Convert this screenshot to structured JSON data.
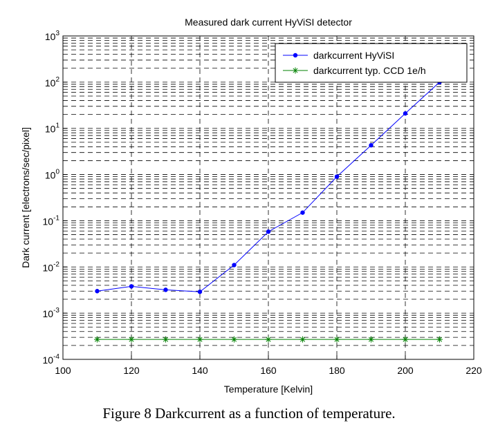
{
  "chart_data": {
    "type": "line",
    "title": "Measured dark current HyViSI detector",
    "xlabel": "Temperature [Kelvin]",
    "ylabel": "Dark current [electrons/sec/pixel]",
    "xlim": [
      100,
      220
    ],
    "ylim": [
      0.0001,
      1000
    ],
    "y_scale": "log",
    "grid": true,
    "legend_position": "top-right",
    "x_ticks": [
      "100",
      "120",
      "140",
      "160",
      "180",
      "200",
      "220"
    ],
    "y_ticks": [
      {
        "value": 0.0001,
        "base": "10",
        "exp": "-4"
      },
      {
        "value": 0.001,
        "base": "10",
        "exp": "-3"
      },
      {
        "value": 0.01,
        "base": "10",
        "exp": "-2"
      },
      {
        "value": 0.1,
        "base": "10",
        "exp": "-1"
      },
      {
        "value": 1,
        "base": "10",
        "exp": "0"
      },
      {
        "value": 10,
        "base": "10",
        "exp": "1"
      },
      {
        "value": 100,
        "base": "10",
        "exp": "2"
      },
      {
        "value": 1000,
        "base": "10",
        "exp": "3"
      }
    ],
    "series": [
      {
        "name": "darkcurrent HyViSI",
        "color": "#0000ff",
        "marker": "dot",
        "x": [
          110,
          120,
          130,
          140,
          150,
          160,
          170,
          180,
          190,
          200,
          210
        ],
        "y": [
          0.003,
          0.0038,
          0.0032,
          0.0029,
          0.011,
          0.058,
          0.15,
          0.9,
          4.3,
          21,
          100
        ]
      },
      {
        "name": "darkcurrent typ. CCD 1e/h",
        "color": "#008000",
        "marker": "asterisk",
        "x": [
          110,
          120,
          130,
          140,
          150,
          160,
          170,
          180,
          190,
          200,
          210
        ],
        "y": [
          0.00027,
          0.00027,
          0.00027,
          0.00027,
          0.00027,
          0.00027,
          0.00027,
          0.00027,
          0.00027,
          0.00027,
          0.00027
        ]
      }
    ]
  },
  "caption": "Figure 8 Darkcurrent as a function of temperature."
}
